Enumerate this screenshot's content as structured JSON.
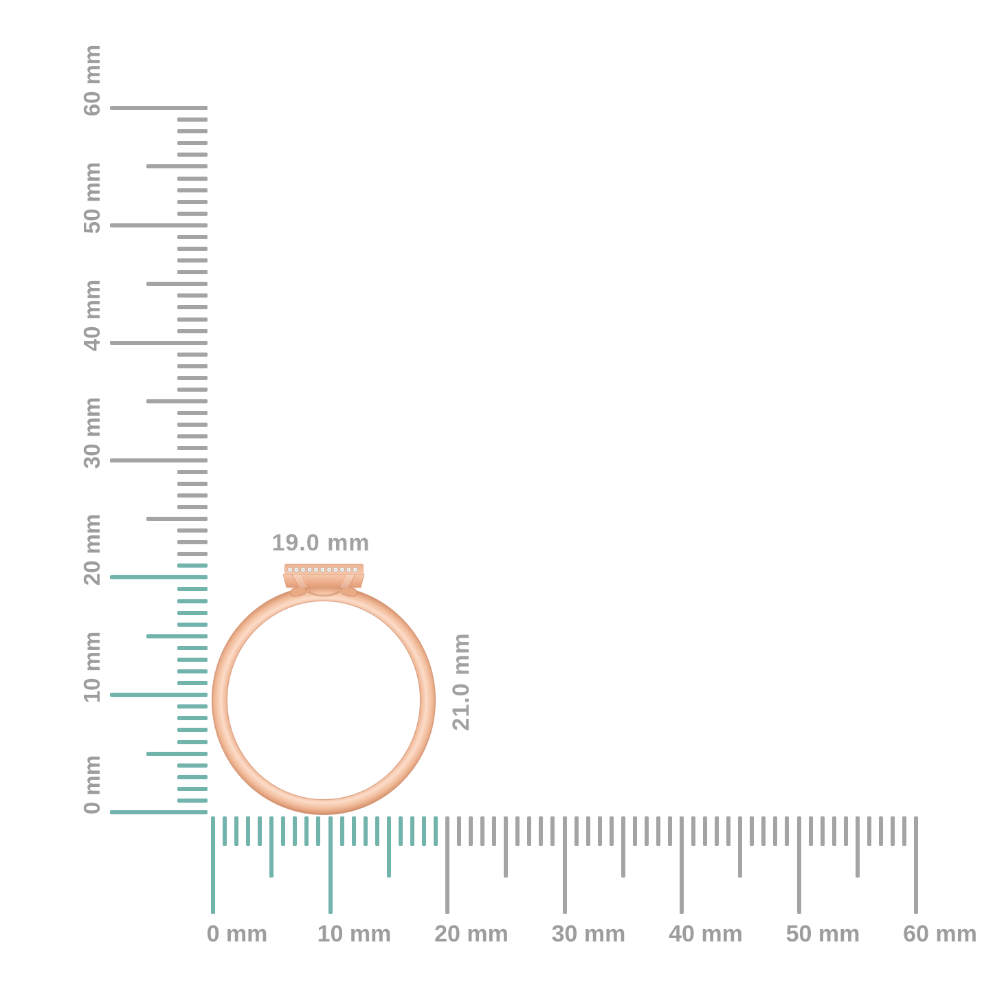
{
  "figure": {
    "kind": "ring-size-measurement-diagram",
    "subject": "rose gold ring side profile with diamond-set bar head"
  },
  "annotations": {
    "width": "19.0 mm",
    "height": "21.0 mm"
  },
  "rulers": {
    "unit": "mm",
    "min_mm": 0,
    "max_mm": 60,
    "tick_every_mm": 1,
    "medium_every_mm": 5,
    "major_every_mm": 10,
    "vertical": {
      "labels": [
        "0 mm",
        "10 mm",
        "20 mm",
        "30 mm",
        "40 mm",
        "50 mm",
        "60 mm"
      ],
      "highlight_extent_mm": 21
    },
    "horizontal": {
      "labels": [
        "0 mm",
        "10 mm",
        "20 mm",
        "30 mm",
        "40 mm",
        "50 mm",
        "60 mm"
      ],
      "highlight_extent_mm": 19
    }
  },
  "ring": {
    "head_stone_count": 11
  },
  "colors": {
    "tick_gray": "#a4a4a4",
    "tick_highlight_teal": "#72b4ac",
    "label_gray": "#9d9d9d",
    "annotation_gray": "#a2a2a2",
    "ring_gold_light": "#fcdcc9",
    "ring_gold_mid": "#f0b795",
    "ring_gold_dark": "#d08a66",
    "diamond_white": "#faf8f6"
  }
}
